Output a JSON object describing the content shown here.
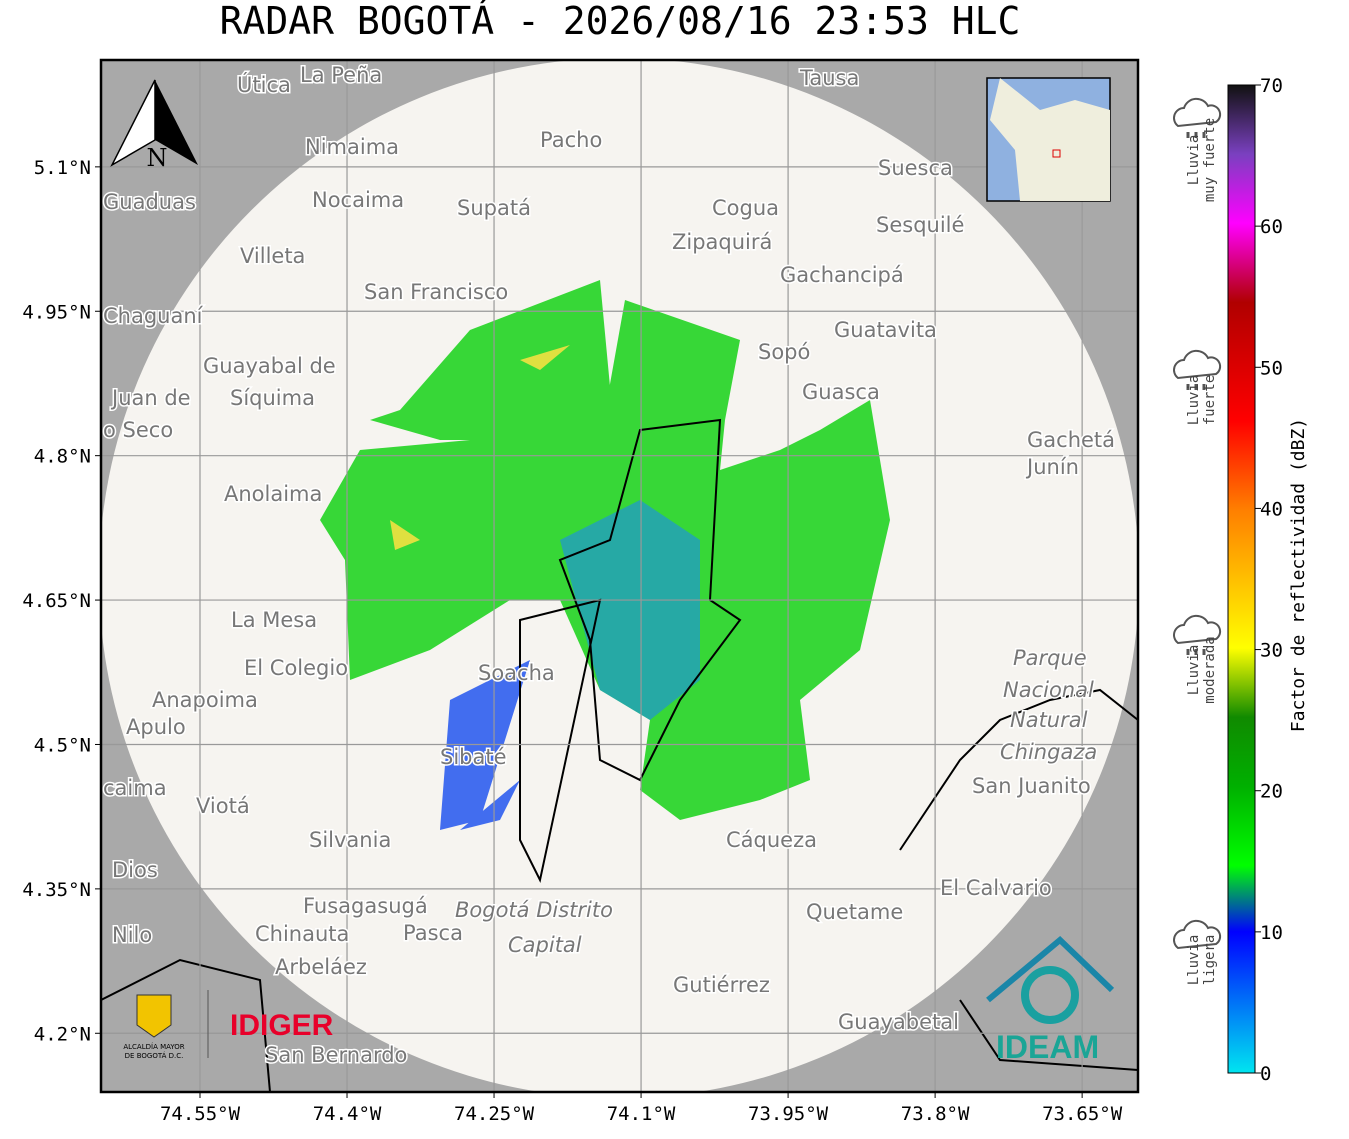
{
  "title": "RADAR BOGOTÁ - 2026/08/16 23:53 HLC",
  "map": {
    "xlim": [
      -74.651,
      -73.593
    ],
    "ylim": [
      4.139,
      5.211
    ],
    "xticks": [
      {
        "value": -74.55,
        "label": "74.55°W"
      },
      {
        "value": -74.4,
        "label": "74.4°W"
      },
      {
        "value": -74.25,
        "label": "74.25°W"
      },
      {
        "value": -74.1,
        "label": "74.1°W"
      },
      {
        "value": -73.95,
        "label": "73.95°W"
      },
      {
        "value": -73.8,
        "label": "73.8°W"
      },
      {
        "value": -73.65,
        "label": "73.65°W"
      }
    ],
    "yticks": [
      {
        "value": 5.1,
        "label": "5.1°N"
      },
      {
        "value": 4.95,
        "label": "4.95°N"
      },
      {
        "value": 4.8,
        "label": "4.8°N"
      },
      {
        "value": 4.65,
        "label": "4.65°N"
      },
      {
        "value": 4.5,
        "label": "4.5°N"
      },
      {
        "value": 4.35,
        "label": "4.35°N"
      },
      {
        "value": 4.2,
        "label": "4.2°N"
      }
    ],
    "grid": true,
    "places": [
      "Útica",
      "La Peña",
      "Tausa",
      "Pacho",
      "Nimaima",
      "Suesca",
      "Guaduas",
      "Nocaima",
      "Supatá",
      "Cogua",
      "Sesquilé",
      "Zipaquirá",
      "Villeta",
      "Gachancipá",
      "San Francisco",
      "Chaguaní",
      "Guatavita",
      "Sopó",
      "Guayabal de",
      "Síquima",
      "Juan de",
      "Guasca",
      "o Seco",
      "Gachetá",
      "Junín",
      "Anolaima",
      "La Mesa",
      "El Colegio",
      "Soacha",
      "Parque",
      "Nacional",
      "Natural",
      "Chingaza",
      "Anapoima",
      "Apulo",
      "Sibaté",
      "San Juanito",
      "caima",
      "Viotá",
      "Silvania",
      "Cáqueza",
      "Dios",
      "El Calvario",
      "Fusagasugá",
      "Bogotá Distrito",
      "Capital",
      "Quetame",
      "Nilo",
      "Chinauta",
      "Pasca",
      "Arbeláez",
      "Gutiérrez",
      "Guayabetal",
      "San Bernardo"
    ]
  },
  "north_label": "N",
  "colorbar": {
    "label": "Factor de reflectividad (dBZ)",
    "ylim": [
      0,
      70
    ],
    "yticks": [
      0,
      10,
      20,
      30,
      40,
      50,
      60,
      70
    ]
  },
  "intensity_legend": [
    [
      "Lluvia",
      "muy fuerte"
    ],
    [
      "Lluvia",
      "fuerte"
    ],
    [
      "Lluvia",
      "moderada"
    ],
    [
      "Lluvia",
      "ligera"
    ]
  ],
  "logos": {
    "alcaldia": [
      "ALCALDÍA MAYOR",
      "DE BOGOTÁ D.C."
    ],
    "idiger": "IDIGER",
    "ideam": "IDEAM"
  }
}
